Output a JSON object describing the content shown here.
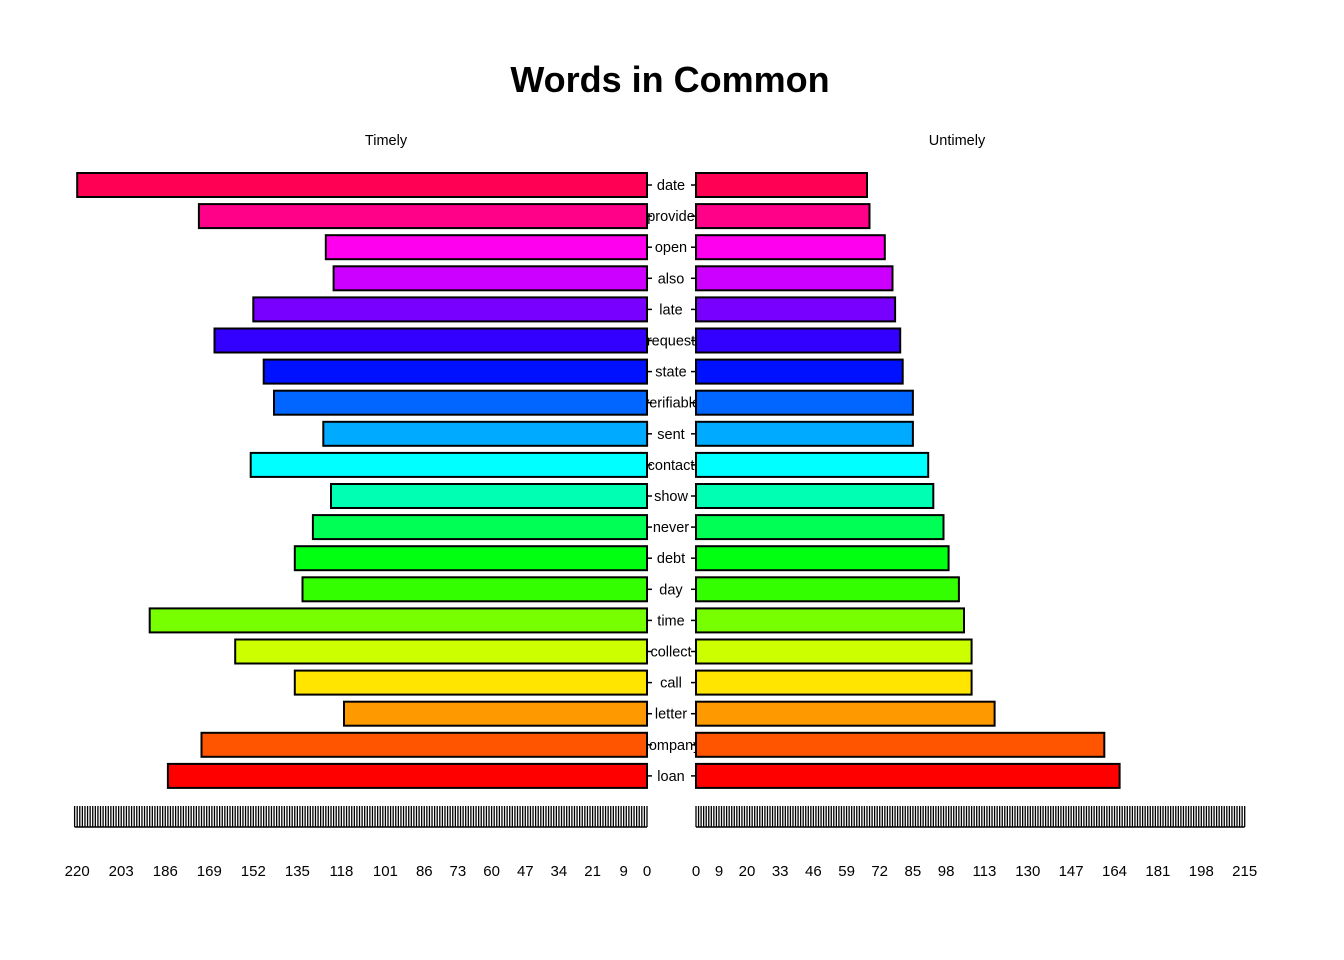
{
  "chart_data": {
    "type": "bar",
    "title": "Words in Common",
    "orientation": "horizontal-pyramid",
    "categories": [
      "date",
      "provide",
      "open",
      "also",
      "late",
      "request",
      "state",
      "verifiable",
      "sent",
      "contact",
      "show",
      "never",
      "debt",
      "day",
      "time",
      "collect",
      "call",
      "letter",
      "company",
      "loan"
    ],
    "category_display": [
      "date",
      "provide",
      "open",
      "also",
      "late",
      "request",
      "state",
      "verifiable",
      "sent",
      "contact",
      "show",
      "never",
      "debt",
      "day",
      "time",
      "collect",
      "call",
      "letter",
      "company",
      "loan"
    ],
    "series": [
      {
        "name": "Timely",
        "values": [
          220,
          173,
          124,
          121,
          152,
          167,
          148,
          144,
          125,
          153,
          122,
          129,
          136,
          133,
          192,
          159,
          136,
          117,
          172,
          185
        ]
      },
      {
        "name": "Untimely",
        "values": [
          67,
          68,
          74,
          77,
          78,
          80,
          81,
          85,
          85,
          91,
          93,
          97,
          99,
          103,
          105,
          108,
          108,
          117,
          160,
          166
        ]
      }
    ],
    "colors": [
      "#FF0055",
      "#FF0088",
      "#FF00EE",
      "#CC00FF",
      "#7700FF",
      "#3300FF",
      "#0011FF",
      "#0066FF",
      "#00AAFF",
      "#00FFFF",
      "#00FFB2",
      "#00FF55",
      "#00FF11",
      "#33FF00",
      "#77FF00",
      "#CCFF00",
      "#FFE500",
      "#FF9900",
      "#FF5500",
      "#FF0000"
    ],
    "left_axis": {
      "xlim": [
        0,
        221
      ],
      "tick_labels": [
        "220",
        "203",
        "186",
        "169",
        "152",
        "135",
        "118",
        "101",
        "86",
        "73",
        "60",
        "47",
        "34",
        "21",
        "9",
        "0"
      ]
    },
    "right_axis": {
      "xlim": [
        0,
        215
      ],
      "tick_labels": [
        "0",
        "9",
        "20",
        "33",
        "46",
        "59",
        "72",
        "85",
        "98",
        "113",
        "130",
        "147",
        "164",
        "181",
        "198",
        "215"
      ]
    },
    "grid": false,
    "legend": "none"
  }
}
